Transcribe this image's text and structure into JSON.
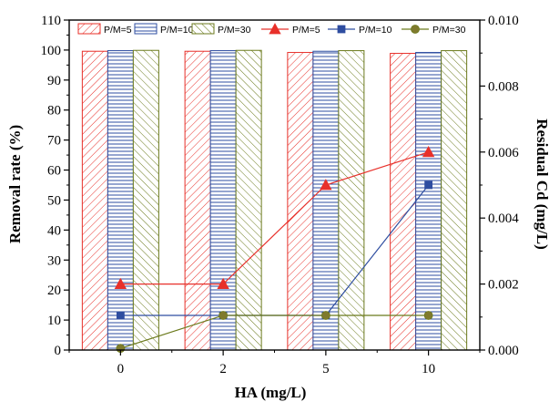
{
  "chart_data": {
    "type": "bar",
    "categories": [
      "0",
      "2",
      "5",
      "10"
    ],
    "xlabel": "HA (mg/L)",
    "ylabel": "Removal rate (%)",
    "y2label": "Residual Cd (mg/L)",
    "ylim": [
      0,
      110
    ],
    "y2lim": [
      0,
      0.01
    ],
    "yticks": [
      "0",
      "10",
      "20",
      "30",
      "40",
      "50",
      "60",
      "70",
      "80",
      "90",
      "100",
      "110"
    ],
    "y2ticks": [
      "0.000",
      "0.002",
      "0.004",
      "0.006",
      "0.008",
      "0.010"
    ],
    "grid": false,
    "legend_position": "top",
    "bar_series": [
      {
        "name": "P/M=5",
        "values": [
          99.6,
          99.6,
          99.2,
          98.9
        ],
        "color": "#e8302a",
        "hatch": "diagonal-right"
      },
      {
        "name": "P/M=10",
        "values": [
          99.8,
          99.8,
          99.6,
          99.2
        ],
        "color": "#2e4da0",
        "hatch": "horizontal"
      },
      {
        "name": "P/M=30",
        "values": [
          99.9,
          99.9,
          99.8,
          99.8
        ],
        "color": "#6b7a1c",
        "hatch": "diagonal-left"
      }
    ],
    "line_series": [
      {
        "name": "P/M=5",
        "values": [
          0.002,
          0.002,
          0.005,
          0.006
        ],
        "color": "#e8302a",
        "marker": "triangle"
      },
      {
        "name": "P/M=10",
        "values": [
          0.00105,
          0.00105,
          0.00105,
          0.005
        ],
        "color": "#2e4da0",
        "marker": "square"
      },
      {
        "name": "P/M=30",
        "values": [
          5e-05,
          0.00105,
          0.00105,
          0.00105
        ],
        "color": "#6b7a1c",
        "marker": "circle",
        "marker_fill": "#7f7a2e"
      }
    ]
  }
}
